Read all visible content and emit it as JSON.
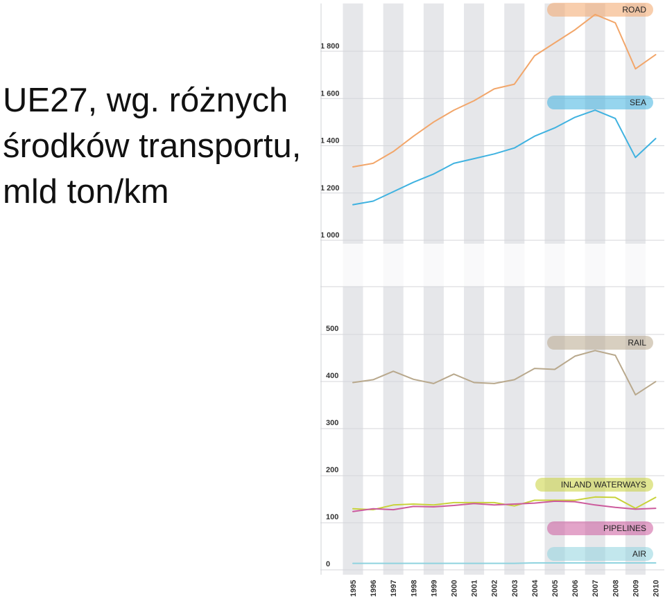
{
  "page_title": "UE27, wg. różnych środków transportu, mld ton/km",
  "colors": {
    "road": "#f2a66a",
    "sea": "#3fb2e0",
    "rail": "#b8a88c",
    "inland_waterways": "#c8d23a",
    "pipelines": "#cc5a9c",
    "air": "#8fd3df",
    "band": "#e6e7ea",
    "grid": "#d4d6da"
  },
  "chart_data": {
    "type": "line",
    "title": "",
    "xlabel": "",
    "ylabel": "",
    "broken_axis": true,
    "y_ticks_upper": [
      "1 000",
      "1 200",
      "1 400",
      "1 600",
      "1 800"
    ],
    "y_ticks_lower": [
      "0",
      "100",
      "200",
      "300",
      "400",
      "500"
    ],
    "ylim_upper": [
      1000,
      2000
    ],
    "ylim_lower": [
      0,
      500
    ],
    "grid": true,
    "x": [
      "1995",
      "1996",
      "1997",
      "1998",
      "1999",
      "2000",
      "2001",
      "2002",
      "2003",
      "2004",
      "2005",
      "2006",
      "2007",
      "2008",
      "2009",
      "2010"
    ],
    "series": [
      {
        "name": "ROAD",
        "key": "road",
        "panel": "upper",
        "values": [
          1290,
          1305,
          1355,
          1420,
          1480,
          1530,
          1570,
          1620,
          1640,
          1760,
          1815,
          1870,
          1935,
          1900,
          1705,
          1765
        ]
      },
      {
        "name": "SEA",
        "key": "sea",
        "panel": "upper",
        "values": [
          1130,
          1145,
          1185,
          1225,
          1260,
          1305,
          1325,
          1345,
          1370,
          1420,
          1455,
          1500,
          1530,
          1495,
          1330,
          1410
        ]
      },
      {
        "name": "RAIL",
        "key": "rail",
        "panel": "lower",
        "values": [
          386,
          392,
          410,
          393,
          384,
          404,
          386,
          384,
          392,
          416,
          414,
          442,
          454,
          444,
          360,
          388
        ]
      },
      {
        "name": "INLAND WATERWAYS",
        "key": "inland_waterways",
        "panel": "lower",
        "values": [
          118,
          116,
          126,
          128,
          126,
          131,
          131,
          131,
          124,
          136,
          136,
          136,
          143,
          142,
          119,
          142
        ]
      },
      {
        "name": "PIPELINES",
        "key": "pipelines",
        "panel": "lower",
        "values": [
          112,
          118,
          116,
          123,
          122,
          125,
          129,
          126,
          128,
          130,
          134,
          133,
          126,
          121,
          117,
          119
        ]
      },
      {
        "name": "AIR",
        "key": "air",
        "panel": "lower",
        "values": [
          2,
          2,
          2,
          2,
          2,
          2,
          2,
          2,
          2,
          3,
          3,
          3,
          3,
          3,
          3,
          3
        ]
      }
    ],
    "legend_order_top_to_bottom": [
      "ROAD",
      "SEA",
      "RAIL",
      "INLAND WATERWAYS",
      "PIPELINES",
      "AIR"
    ]
  }
}
